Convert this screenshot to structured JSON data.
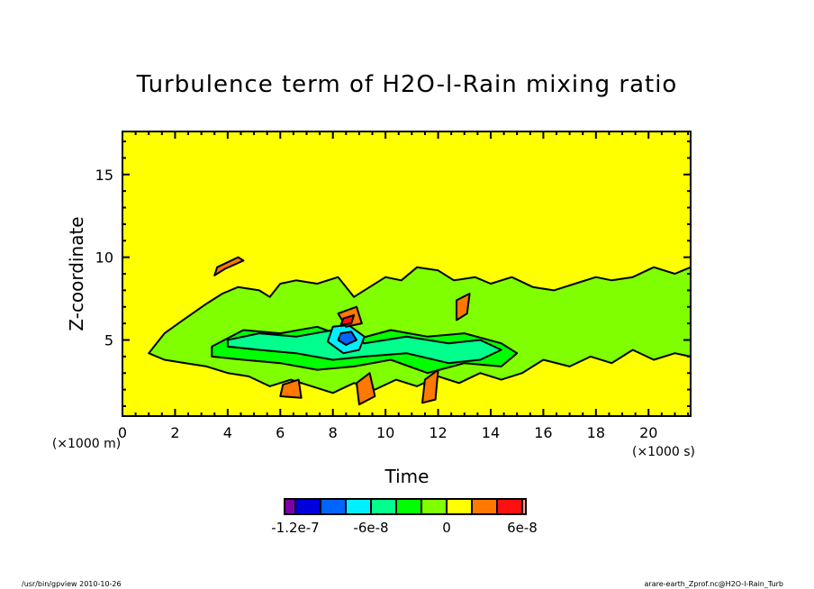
{
  "chart_data": {
    "type": "heatmap",
    "title": "Turbulence term of H2O-l-Rain mixing ratio",
    "xlabel": "Time",
    "xunit": "(×1000 s)",
    "ylabel": "Z-coordinate",
    "yunit": "(×1000 m)",
    "xlim": [
      0,
      21.6
    ],
    "ylim": [
      0.4,
      17.6
    ],
    "xticks": [
      0,
      2,
      4,
      6,
      8,
      10,
      12,
      14,
      16,
      18,
      20
    ],
    "xtick_labels": [
      "0",
      "2",
      "4",
      "6",
      "8",
      "10",
      "12",
      "14",
      "16",
      "18",
      "20"
    ],
    "yticks": [
      5,
      10,
      15
    ],
    "ytick_labels": [
      "5",
      "10",
      "15"
    ],
    "background_color": "#ffff00",
    "colorbar": {
      "levels": [
        -1.2e-07,
        -1e-07,
        -8e-08,
        -6e-08,
        -4e-08,
        -2e-08,
        0,
        2e-08,
        4e-08,
        6e-08
      ],
      "colors": [
        "#7f00a8",
        "#0000dc",
        "#0064ff",
        "#00f0ff",
        "#00ff8c",
        "#00ff00",
        "#7fff00",
        "#ffff00",
        "#ff7800",
        "#ff1010",
        "#ff9a9a"
      ],
      "labels": [
        "-1.2e-7",
        "-6e-8",
        "0",
        "6e-8"
      ],
      "label_values": [
        -1.2e-07,
        -6e-08,
        0,
        6e-08
      ]
    },
    "regions": [
      {
        "fill": "#7fff00",
        "x": [
          1.0,
          1.6,
          2.3,
          3.2,
          3.8,
          4.4,
          5.2,
          5.6,
          6.0,
          6.6,
          7.4,
          8.2,
          8.8,
          9.4,
          10.0,
          10.6,
          11.2,
          12.0,
          12.6,
          13.4,
          14.0,
          14.8,
          15.6,
          16.4,
          17.2,
          18.0,
          18.6,
          19.4,
          20.2,
          21.0,
          21.6,
          21.6,
          21.0,
          20.2,
          19.4,
          18.6,
          17.8,
          17.0,
          16.0,
          15.2,
          14.4,
          13.6,
          12.8,
          12.0,
          11.2,
          10.4,
          9.6,
          8.8,
          8.0,
          7.2,
          6.4,
          5.6,
          4.8,
          4.0,
          3.2,
          2.4,
          1.6,
          1.0
        ],
        "y": [
          4.2,
          5.4,
          6.2,
          7.2,
          7.8,
          8.2,
          8.0,
          7.6,
          8.4,
          8.6,
          8.4,
          8.8,
          7.6,
          8.2,
          8.8,
          8.6,
          9.4,
          9.2,
          8.6,
          8.8,
          8.4,
          8.8,
          8.2,
          8.0,
          8.4,
          8.8,
          8.6,
          8.8,
          9.4,
          9.0,
          9.4,
          4.0,
          4.2,
          3.8,
          4.4,
          3.6,
          4.0,
          3.4,
          3.8,
          3.0,
          2.6,
          3.0,
          2.4,
          2.8,
          2.2,
          2.6,
          2.0,
          2.4,
          1.8,
          2.2,
          2.6,
          2.2,
          2.8,
          3.0,
          3.4,
          3.6,
          3.8,
          4.2
        ]
      },
      {
        "fill": "#00ff00",
        "x": [
          3.4,
          4.6,
          6.0,
          7.4,
          8.8,
          10.2,
          11.6,
          13.0,
          14.4,
          15.0,
          14.4,
          13.0,
          11.6,
          10.2,
          8.8,
          7.4,
          6.0,
          4.6,
          3.4
        ],
        "y": [
          4.6,
          5.6,
          5.4,
          5.8,
          5.0,
          5.6,
          5.2,
          5.4,
          4.8,
          4.2,
          3.4,
          3.6,
          3.0,
          3.8,
          3.4,
          3.2,
          3.6,
          3.8,
          4.0
        ]
      },
      {
        "fill": "#00ff8c",
        "x": [
          4.0,
          5.2,
          6.6,
          8.0,
          9.2,
          10.8,
          12.4,
          13.6,
          14.4,
          13.6,
          12.4,
          10.8,
          9.2,
          8.0,
          6.6,
          5.2,
          4.0
        ],
        "y": [
          5.0,
          5.4,
          5.2,
          5.6,
          4.8,
          5.2,
          4.8,
          5.0,
          4.4,
          3.8,
          3.6,
          4.2,
          4.0,
          3.8,
          4.2,
          4.4,
          4.6
        ]
      },
      {
        "fill": "#00f0ff",
        "x": [
          8.0,
          8.6,
          9.2,
          9.0,
          8.4,
          7.8
        ],
        "y": [
          5.8,
          5.9,
          5.2,
          4.4,
          4.2,
          4.9
        ]
      },
      {
        "fill": "#0064ff",
        "x": [
          8.3,
          8.7,
          8.9,
          8.5,
          8.2
        ],
        "y": [
          5.4,
          5.5,
          5.0,
          4.7,
          5.0
        ]
      },
      {
        "fill": "#ff7800",
        "x": [
          3.6,
          4.4,
          4.6,
          3.9,
          3.5
        ],
        "y": [
          9.4,
          10.0,
          9.8,
          9.3,
          8.9
        ]
      },
      {
        "fill": "#ff7800",
        "x": [
          8.2,
          8.9,
          9.1,
          8.5
        ],
        "y": [
          6.6,
          7.0,
          6.0,
          5.8
        ]
      },
      {
        "fill": "#ff7800",
        "x": [
          6.0,
          6.8,
          6.7,
          6.1
        ],
        "y": [
          1.6,
          1.5,
          2.6,
          2.3
        ]
      },
      {
        "fill": "#ff7800",
        "x": [
          9.0,
          9.6,
          9.4,
          8.9
        ],
        "y": [
          1.1,
          1.6,
          3.0,
          2.4
        ]
      },
      {
        "fill": "#ff7800",
        "x": [
          11.5,
          12.0,
          11.9,
          11.4
        ],
        "y": [
          2.6,
          3.2,
          1.4,
          1.2
        ]
      },
      {
        "fill": "#ff7800",
        "x": [
          12.7,
          13.2,
          13.1,
          12.7
        ],
        "y": [
          7.4,
          7.8,
          6.6,
          6.2
        ]
      },
      {
        "fill": "#ff1010",
        "x": [
          8.4,
          8.8,
          8.7,
          8.3
        ],
        "y": [
          6.3,
          6.5,
          6.0,
          5.9
        ]
      }
    ]
  },
  "footer": {
    "left": "/usr/bin/gpview   2010-10-26",
    "right": "arare-earth_Zprof.nc@H2O-l-Rain_Turb"
  }
}
